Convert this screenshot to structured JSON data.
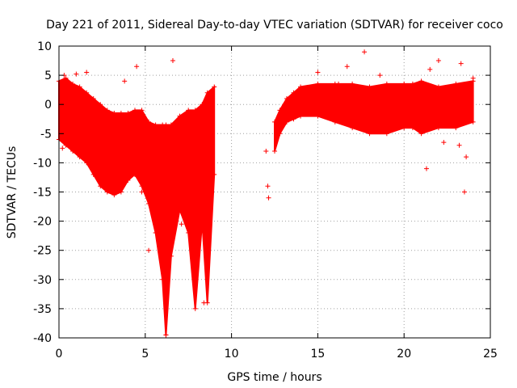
{
  "chart_data": {
    "type": "scatter",
    "title": "Day 221 of 2011, Sidereal Day-to-day VTEC variation (SDTVAR) for receiver coco",
    "xlabel": "GPS time / hours",
    "ylabel": "SDTVAR / TECUs",
    "xlim": [
      0,
      25
    ],
    "ylim": [
      -40,
      10
    ],
    "xticks": [
      0,
      5,
      10,
      15,
      20,
      25
    ],
    "yticks": [
      -40,
      -35,
      -30,
      -25,
      -20,
      -15,
      -10,
      -5,
      0,
      5,
      10
    ],
    "grid": true,
    "series": [
      {
        "name": "SDTVAR",
        "color": "#ff0000",
        "marker": "plus",
        "band": [
          {
            "x": 0.0,
            "lo": -6,
            "hi": 4
          },
          {
            "x": 0.4,
            "lo": -7,
            "hi": 4.5
          },
          {
            "x": 0.8,
            "lo": -8,
            "hi": 3.5
          },
          {
            "x": 1.2,
            "lo": -9,
            "hi": 3
          },
          {
            "x": 1.6,
            "lo": -10,
            "hi": 2
          },
          {
            "x": 2.0,
            "lo": -12,
            "hi": 1
          },
          {
            "x": 2.4,
            "lo": -14,
            "hi": 0
          },
          {
            "x": 2.8,
            "lo": -15,
            "hi": -1
          },
          {
            "x": 3.2,
            "lo": -15.5,
            "hi": -1.5
          },
          {
            "x": 3.6,
            "lo": -15,
            "hi": -1.5
          },
          {
            "x": 4.0,
            "lo": -13,
            "hi": -1.5
          },
          {
            "x": 4.4,
            "lo": -12,
            "hi": -1
          },
          {
            "x": 4.8,
            "lo": -14,
            "hi": -1
          },
          {
            "x": 5.2,
            "lo": -17,
            "hi": -3
          },
          {
            "x": 5.6,
            "lo": -22,
            "hi": -3.5
          },
          {
            "x": 6.0,
            "lo": -30,
            "hi": -3.5
          },
          {
            "x": 6.2,
            "lo": -39.5,
            "hi": -3.5
          },
          {
            "x": 6.5,
            "lo": -26,
            "hi": -3.5
          },
          {
            "x": 7.0,
            "lo": -18,
            "hi": -2
          },
          {
            "x": 7.5,
            "lo": -22,
            "hi": -1
          },
          {
            "x": 7.9,
            "lo": -35,
            "hi": -1
          },
          {
            "x": 8.3,
            "lo": -20,
            "hi": 0
          },
          {
            "x": 8.6,
            "lo": -34,
            "hi": 2
          },
          {
            "x": 9.0,
            "lo": -12,
            "hi": 3
          },
          {
            "x": 12.5,
            "lo": -8,
            "hi": -3
          },
          {
            "x": 12.8,
            "lo": -5,
            "hi": -1
          },
          {
            "x": 13.2,
            "lo": -3,
            "hi": 1
          },
          {
            "x": 13.6,
            "lo": -2.5,
            "hi": 2
          },
          {
            "x": 14.0,
            "lo": -2,
            "hi": 3
          },
          {
            "x": 15.0,
            "lo": -2,
            "hi": 3.5
          },
          {
            "x": 16.0,
            "lo": -3,
            "hi": 3.5
          },
          {
            "x": 17.0,
            "lo": -4,
            "hi": 3.5
          },
          {
            "x": 18.0,
            "lo": -5,
            "hi": 3
          },
          {
            "x": 19.0,
            "lo": -5,
            "hi": 3.5
          },
          {
            "x": 20.0,
            "lo": -4,
            "hi": 3.5
          },
          {
            "x": 20.5,
            "lo": -4,
            "hi": 3.5
          },
          {
            "x": 21.0,
            "lo": -5,
            "hi": 4
          },
          {
            "x": 22.0,
            "lo": -4,
            "hi": 3
          },
          {
            "x": 23.0,
            "lo": -4,
            "hi": 3.5
          },
          {
            "x": 24.0,
            "lo": -3,
            "hi": 4
          }
        ],
        "points": [
          {
            "x": 0.3,
            "y": 5
          },
          {
            "x": 0.2,
            "y": -7.5
          },
          {
            "x": 1.0,
            "y": 5.2
          },
          {
            "x": 1.6,
            "y": 5.5
          },
          {
            "x": 3.8,
            "y": 4
          },
          {
            "x": 4.5,
            "y": 6.5
          },
          {
            "x": 5.2,
            "y": -25
          },
          {
            "x": 4.8,
            "y": -15
          },
          {
            "x": 6.6,
            "y": 7.5
          },
          {
            "x": 6.2,
            "y": -39.5
          },
          {
            "x": 7.1,
            "y": -20.5
          },
          {
            "x": 8.4,
            "y": -34
          },
          {
            "x": 12.0,
            "y": -8
          },
          {
            "x": 12.1,
            "y": -14
          },
          {
            "x": 12.15,
            "y": -16
          },
          {
            "x": 15.0,
            "y": 5.5
          },
          {
            "x": 16.2,
            "y": 3.5
          },
          {
            "x": 16.7,
            "y": 6.5
          },
          {
            "x": 17.7,
            "y": 9
          },
          {
            "x": 18.6,
            "y": 5
          },
          {
            "x": 21.3,
            "y": -11
          },
          {
            "x": 21.5,
            "y": 6
          },
          {
            "x": 22.0,
            "y": 7.5
          },
          {
            "x": 22.3,
            "y": -6.5
          },
          {
            "x": 23.2,
            "y": -7
          },
          {
            "x": 23.3,
            "y": 7
          },
          {
            "x": 23.5,
            "y": -15
          },
          {
            "x": 23.6,
            "y": -9
          },
          {
            "x": 24.0,
            "y": 4.5
          }
        ]
      }
    ]
  }
}
